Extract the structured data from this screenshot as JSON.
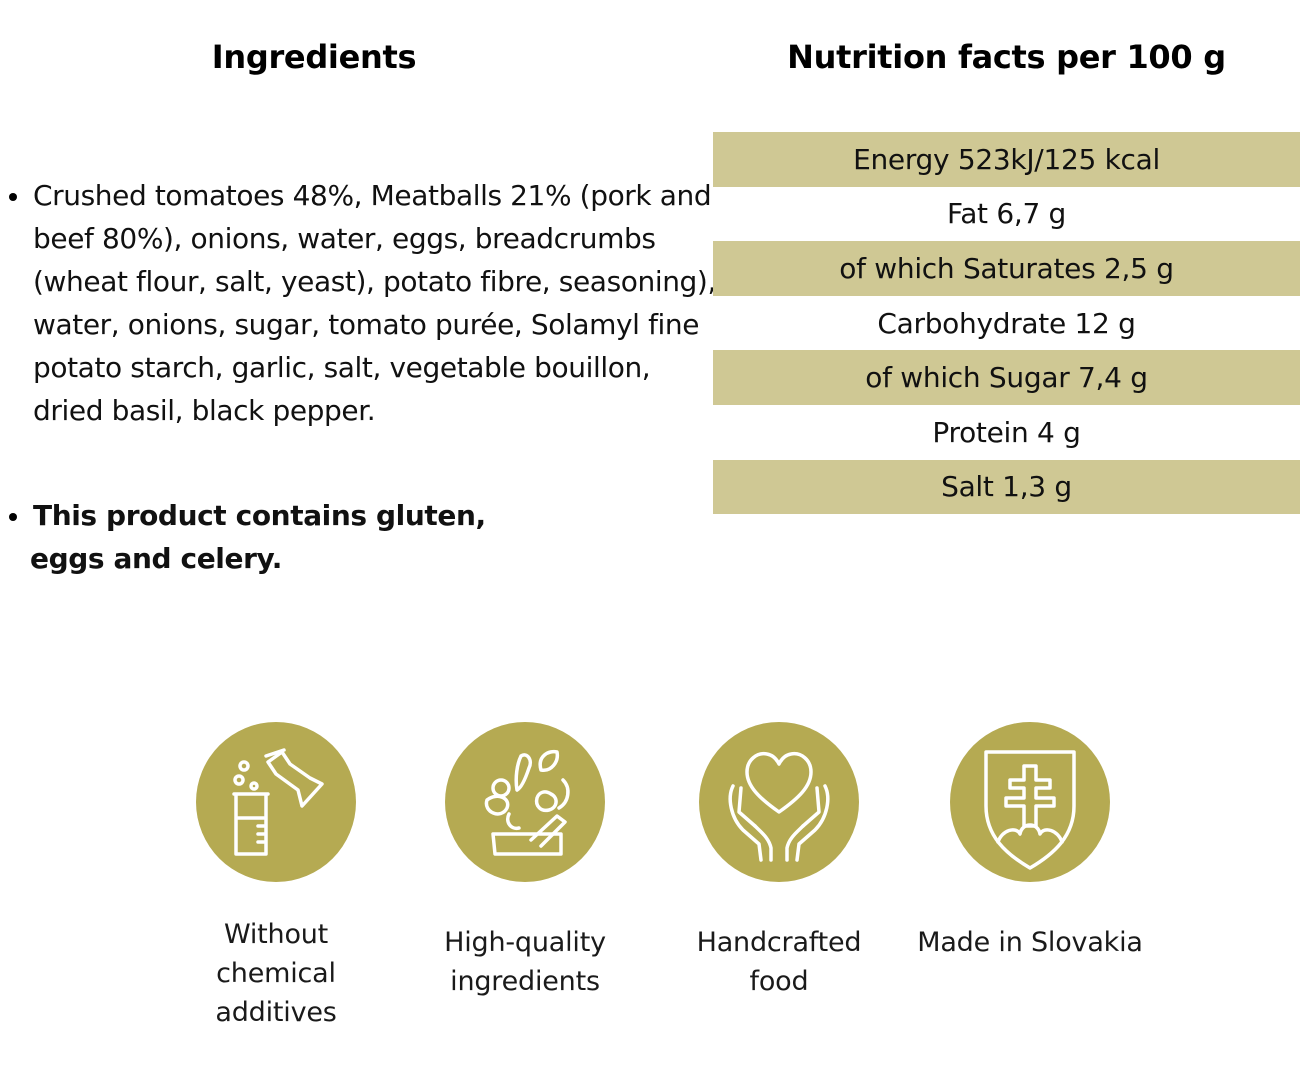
{
  "ingredients": {
    "heading": "Ingredients",
    "text": "Crushed tomatoes 48%, Meatballs 21% (pork and beef 80%), onions, water, eggs, breadcrumbs (wheat flour, salt, yeast), potato fibre, seasoning), water, onions, sugar, tomato purée, Solamyl fine potato starch, garlic, salt, vegetable bouillon, dried basil, black pepper.",
    "allergen_line1": "This product contains gluten,",
    "allergen_line2": "eggs and celery."
  },
  "nutrition": {
    "heading": "Nutrition facts per 100 g",
    "rows": [
      "Energy 523kJ/125 kcal",
      "Fat 6,7 g",
      "of which Saturates 2,5 g",
      "Carbohydrate 12 g",
      "of which Sugar 7,4 g",
      "Protein 4 g",
      "Salt 1,3 g"
    ],
    "band_color": "#cfc894"
  },
  "badges": [
    {
      "icon": "chemistry-flask-icon",
      "lines": [
        "Without",
        "chemical",
        "additives"
      ]
    },
    {
      "icon": "fresh-produce-icon",
      "lines": [
        "High-quality",
        "ingredients"
      ]
    },
    {
      "icon": "heart-in-hands-icon",
      "lines": [
        "Handcrafted",
        "food"
      ]
    },
    {
      "icon": "slovak-coat-of-arms-icon",
      "lines": [
        "Made in Slovakia"
      ]
    }
  ],
  "badge_color": "#b5aa52"
}
